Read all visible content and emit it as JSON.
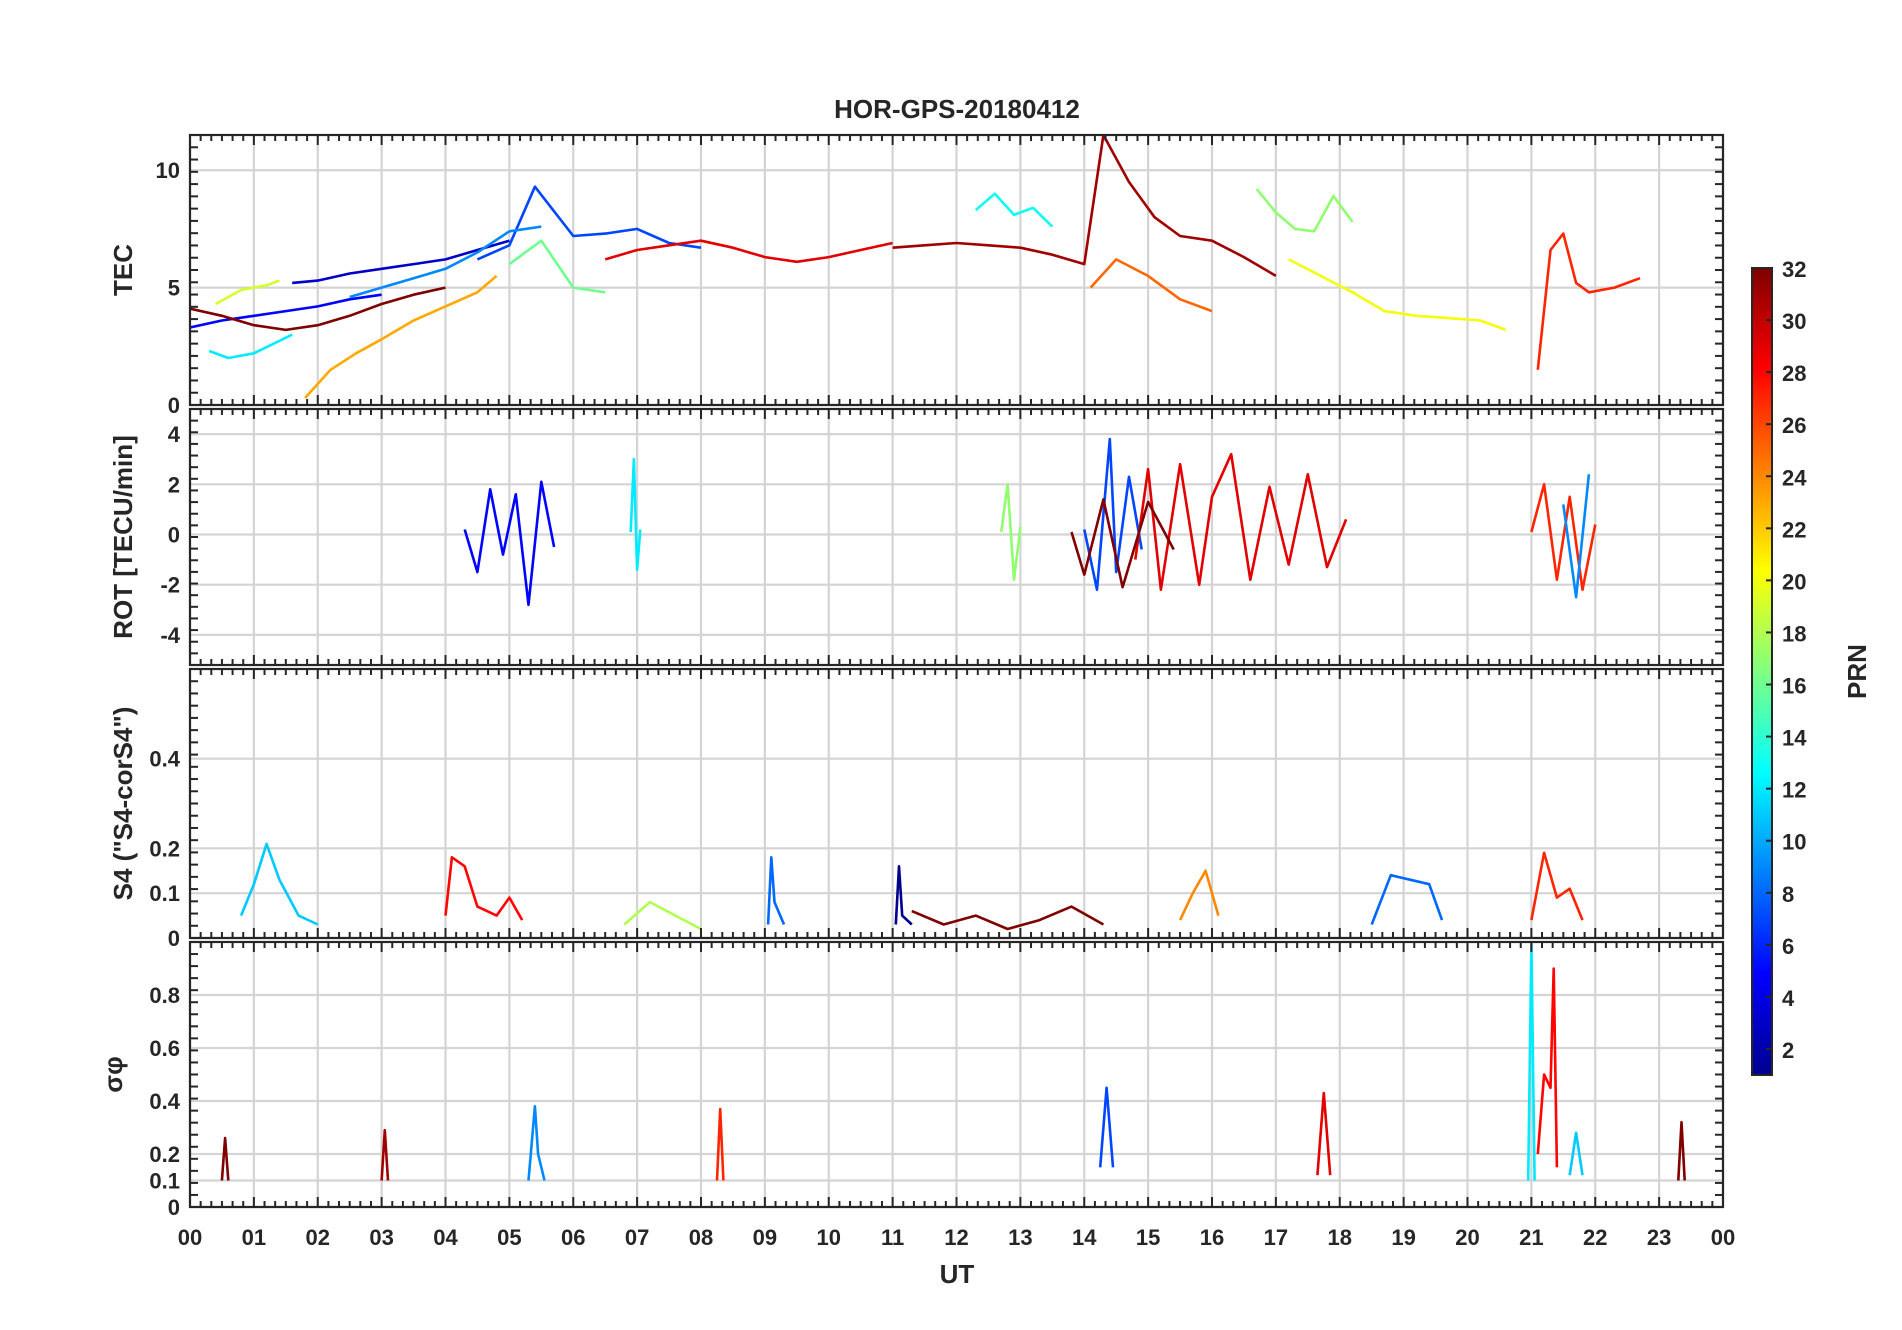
{
  "title": "HOR-GPS-20180412",
  "xlabel": "UT",
  "x_tick_labels": [
    "00",
    "01",
    "02",
    "03",
    "04",
    "05",
    "06",
    "07",
    "08",
    "09",
    "10",
    "11",
    "12",
    "13",
    "14",
    "15",
    "16",
    "17",
    "18",
    "19",
    "20",
    "21",
    "22",
    "23",
    "00"
  ],
  "colorbar": {
    "label": "PRN",
    "range": [
      1,
      32
    ],
    "tick_labels": [
      "2",
      "4",
      "6",
      "8",
      "10",
      "12",
      "14",
      "16",
      "18",
      "20",
      "22",
      "24",
      "26",
      "28",
      "30",
      "32"
    ],
    "colormap": [
      "#00008f",
      "#0000ff",
      "#0080ff",
      "#00ffff",
      "#80ff80",
      "#ffff00",
      "#ff8000",
      "#ff0000",
      "#800000"
    ]
  },
  "chart_data": [
    {
      "id": "tec",
      "type": "line",
      "ylabel": "TEC",
      "xlim": [
        0,
        24
      ],
      "ylim": [
        0,
        11.5
      ],
      "ytick_labels": [
        "0",
        "5",
        "10"
      ],
      "series": [
        {
          "prn": 3,
          "x": [
            1.6,
            2.0,
            2.5,
            3.0,
            3.5,
            4.0,
            4.5,
            5.0
          ],
          "y": [
            5.2,
            5.3,
            5.6,
            5.8,
            6.0,
            6.2,
            6.6,
            7.0
          ]
        },
        {
          "prn": 5,
          "x": [
            0.0,
            0.5,
            1.0,
            1.5,
            2.0,
            2.5,
            3.0
          ],
          "y": [
            3.3,
            3.6,
            3.8,
            4.0,
            4.2,
            4.5,
            4.7
          ]
        },
        {
          "prn": 7,
          "x": [
            4.5,
            5.0,
            5.4,
            6.0,
            6.5,
            7.0,
            7.5,
            8.0
          ],
          "y": [
            6.2,
            6.8,
            9.3,
            7.2,
            7.3,
            7.5,
            6.9,
            6.7
          ]
        },
        {
          "prn": 9,
          "x": [
            2.5,
            3.0,
            3.5,
            4.0,
            4.5,
            5.0,
            5.5
          ],
          "y": [
            4.6,
            5.0,
            5.4,
            5.8,
            6.5,
            7.4,
            7.6
          ]
        },
        {
          "prn": 12,
          "x": [
            0.3,
            0.6,
            1.0,
            1.3,
            1.6
          ],
          "y": [
            2.3,
            2.0,
            2.2,
            2.6,
            3.0
          ]
        },
        {
          "prn": 13,
          "x": [
            12.3,
            12.6,
            12.9,
            13.2,
            13.5
          ],
          "y": [
            8.3,
            9.0,
            8.1,
            8.4,
            7.6
          ]
        },
        {
          "prn": 16,
          "x": [
            5.0,
            5.5,
            6.0,
            6.5
          ],
          "y": [
            6.0,
            7.0,
            5.0,
            4.8
          ]
        },
        {
          "prn": 17,
          "x": [
            16.7,
            17.0,
            17.3,
            17.6,
            17.9,
            18.2
          ],
          "y": [
            9.2,
            8.2,
            7.5,
            7.4,
            8.9,
            7.8
          ]
        },
        {
          "prn": 19,
          "x": [
            0.4,
            0.8,
            1.2,
            1.4
          ],
          "y": [
            4.3,
            4.9,
            5.1,
            5.3
          ]
        },
        {
          "prn": 20,
          "x": [
            17.2,
            17.7,
            18.2,
            18.7,
            19.2,
            19.7,
            20.2,
            20.6
          ],
          "y": [
            6.2,
            5.5,
            4.8,
            4.0,
            3.8,
            3.7,
            3.6,
            3.2
          ]
        },
        {
          "prn": 23,
          "x": [
            1.8,
            2.2,
            2.6,
            3.0,
            3.5,
            4.0,
            4.5,
            4.8
          ],
          "y": [
            0.3,
            1.5,
            2.2,
            2.8,
            3.6,
            4.2,
            4.8,
            5.5
          ]
        },
        {
          "prn": 25,
          "x": [
            14.1,
            14.5,
            15.0,
            15.5,
            16.0
          ],
          "y": [
            5.0,
            6.2,
            5.5,
            4.5,
            4.0
          ]
        },
        {
          "prn": 27,
          "x": [
            21.1,
            21.3,
            21.5,
            21.7,
            21.9,
            22.3,
            22.7
          ],
          "y": [
            1.5,
            6.6,
            7.3,
            5.2,
            4.8,
            5.0,
            5.4
          ]
        },
        {
          "prn": 29,
          "x": [
            6.5,
            7.0,
            7.5,
            8.0,
            8.5,
            9.0,
            9.5,
            10.0,
            10.5,
            11.0
          ],
          "y": [
            6.2,
            6.6,
            6.8,
            7.0,
            6.7,
            6.3,
            6.1,
            6.3,
            6.6,
            6.9
          ]
        },
        {
          "prn": 31,
          "x": [
            11.0,
            11.5,
            12.0,
            12.5,
            13.0,
            13.5,
            14.0,
            14.3,
            14.7,
            15.1,
            15.5,
            16.0,
            16.5,
            17.0
          ],
          "y": [
            6.7,
            6.8,
            6.9,
            6.8,
            6.7,
            6.4,
            6.0,
            11.5,
            9.5,
            8.0,
            7.2,
            7.0,
            6.3,
            5.5
          ]
        },
        {
          "prn": 32,
          "x": [
            0.0,
            0.5,
            1.0,
            1.5,
            2.0,
            2.5,
            3.0,
            3.5,
            4.0
          ],
          "y": [
            4.1,
            3.8,
            3.4,
            3.2,
            3.4,
            3.8,
            4.3,
            4.7,
            5.0
          ]
        }
      ]
    },
    {
      "id": "rot",
      "type": "line",
      "ylabel": "ROT [TECU/min]",
      "xlim": [
        0,
        24
      ],
      "ylim": [
        -5.2,
        5.0
      ],
      "ytick_labels": [
        "-4",
        "-2",
        "0",
        "2",
        "4"
      ],
      "series": [
        {
          "prn": 5,
          "x": [
            4.3,
            4.5,
            4.7,
            4.9,
            5.1,
            5.3,
            5.5,
            5.7
          ],
          "y": [
            0.2,
            -1.5,
            1.8,
            -0.8,
            1.6,
            -2.8,
            2.1,
            -0.5
          ]
        },
        {
          "prn": 12,
          "x": [
            6.9,
            6.95,
            7.0,
            7.05
          ],
          "y": [
            0.1,
            3.0,
            -1.4,
            0.2
          ]
        },
        {
          "prn": 17,
          "x": [
            12.7,
            12.8,
            12.9,
            13.0
          ],
          "y": [
            0.1,
            2.0,
            -1.8,
            0.3
          ]
        },
        {
          "prn": 7,
          "x": [
            14.0,
            14.2,
            14.4,
            14.5,
            14.7,
            14.9
          ],
          "y": [
            0.2,
            -2.2,
            3.8,
            -1.5,
            2.3,
            -0.6
          ]
        },
        {
          "prn": 29,
          "x": [
            14.8,
            15.0,
            15.2,
            15.5,
            15.8,
            16.0,
            16.3,
            16.6,
            16.9,
            17.2,
            17.5,
            17.8,
            18.1
          ],
          "y": [
            -1.0,
            2.6,
            -2.2,
            2.8,
            -2.0,
            1.5,
            3.2,
            -1.8,
            1.9,
            -1.2,
            2.4,
            -1.3,
            0.6
          ]
        },
        {
          "prn": 32,
          "x": [
            13.8,
            14.0,
            14.3,
            14.6,
            15.0,
            15.4
          ],
          "y": [
            0.1,
            -1.6,
            1.4,
            -2.1,
            1.3,
            -0.6
          ]
        },
        {
          "prn": 27,
          "x": [
            21.0,
            21.2,
            21.4,
            21.6,
            21.8,
            22.0
          ],
          "y": [
            0.1,
            2.0,
            -1.8,
            1.5,
            -2.2,
            0.4
          ]
        },
        {
          "prn": 9,
          "x": [
            21.5,
            21.7,
            21.9
          ],
          "y": [
            1.2,
            -2.5,
            2.4
          ]
        }
      ]
    },
    {
      "id": "s4",
      "type": "line",
      "ylabel": "S4 (\"S4-corS4\")",
      "xlim": [
        0,
        24
      ],
      "ylim": [
        0,
        0.6
      ],
      "ytick_labels": [
        "0",
        "0.1",
        "0.2",
        "0.4"
      ],
      "series": [
        {
          "prn": 11,
          "x": [
            0.8,
            1.0,
            1.2,
            1.4,
            1.7,
            2.0
          ],
          "y": [
            0.05,
            0.12,
            0.21,
            0.13,
            0.05,
            0.03
          ]
        },
        {
          "prn": 28,
          "x": [
            4.0,
            4.1,
            4.3,
            4.5,
            4.8,
            5.0,
            5.2
          ],
          "y": [
            0.05,
            0.18,
            0.16,
            0.07,
            0.05,
            0.09,
            0.04
          ]
        },
        {
          "prn": 8,
          "x": [
            9.05,
            9.1,
            9.15,
            9.3
          ],
          "y": [
            0.03,
            0.18,
            0.08,
            0.03
          ]
        },
        {
          "prn": 1,
          "x": [
            11.05,
            11.1,
            11.15,
            11.3
          ],
          "y": [
            0.03,
            0.16,
            0.05,
            0.03
          ]
        },
        {
          "prn": 24,
          "x": [
            15.5,
            15.7,
            15.9,
            16.1
          ],
          "y": [
            0.04,
            0.1,
            0.15,
            0.05
          ]
        },
        {
          "prn": 8,
          "x": [
            18.5,
            18.8,
            19.1,
            19.4,
            19.6
          ],
          "y": [
            0.03,
            0.14,
            0.13,
            0.12,
            0.04
          ]
        },
        {
          "prn": 27,
          "x": [
            21.0,
            21.2,
            21.4,
            21.6,
            21.8
          ],
          "y": [
            0.04,
            0.19,
            0.09,
            0.11,
            0.04
          ]
        },
        {
          "prn": 32,
          "x": [
            11.3,
            11.8,
            12.3,
            12.8,
            13.3,
            13.8,
            14.3
          ],
          "y": [
            0.06,
            0.03,
            0.05,
            0.02,
            0.04,
            0.07,
            0.03
          ]
        },
        {
          "prn": 18,
          "x": [
            6.8,
            7.2,
            7.6,
            8.0
          ],
          "y": [
            0.03,
            0.08,
            0.05,
            0.02
          ]
        }
      ]
    },
    {
      "id": "sigma_phi",
      "type": "line",
      "ylabel": "σφ",
      "xlim": [
        0,
        24
      ],
      "ylim": [
        0,
        1.0
      ],
      "ytick_labels": [
        "0",
        "0.1",
        "0.2",
        "0.4",
        "0.6",
        "0.8"
      ],
      "series": [
        {
          "prn": 9,
          "x": [
            5.3,
            5.4,
            5.45,
            5.55
          ],
          "y": [
            0.1,
            0.38,
            0.2,
            0.1
          ]
        },
        {
          "prn": 27,
          "x": [
            8.25,
            8.3,
            8.35
          ],
          "y": [
            0.1,
            0.37,
            0.1
          ]
        },
        {
          "prn": 31,
          "x": [
            3.0,
            3.05,
            3.1
          ],
          "y": [
            0.1,
            0.29,
            0.1
          ]
        },
        {
          "prn": 32,
          "x": [
            0.5,
            0.55,
            0.6
          ],
          "y": [
            0.1,
            0.26,
            0.1
          ]
        },
        {
          "prn": 7,
          "x": [
            14.25,
            14.35,
            14.45
          ],
          "y": [
            0.15,
            0.45,
            0.15
          ]
        },
        {
          "prn": 29,
          "x": [
            17.65,
            17.75,
            17.85
          ],
          "y": [
            0.12,
            0.43,
            0.12
          ]
        },
        {
          "prn": 12,
          "x": [
            20.95,
            21.0,
            21.05
          ],
          "y": [
            0.1,
            1.0,
            0.1
          ]
        },
        {
          "prn": 28,
          "x": [
            21.1,
            21.2,
            21.3,
            21.35,
            21.4
          ],
          "y": [
            0.2,
            0.5,
            0.45,
            0.9,
            0.15
          ]
        },
        {
          "prn": 11,
          "x": [
            21.6,
            21.7,
            21.8
          ],
          "y": [
            0.12,
            0.28,
            0.12
          ]
        },
        {
          "prn": 32,
          "x": [
            23.3,
            23.35,
            23.4
          ],
          "y": [
            0.1,
            0.32,
            0.1
          ]
        }
      ]
    }
  ]
}
